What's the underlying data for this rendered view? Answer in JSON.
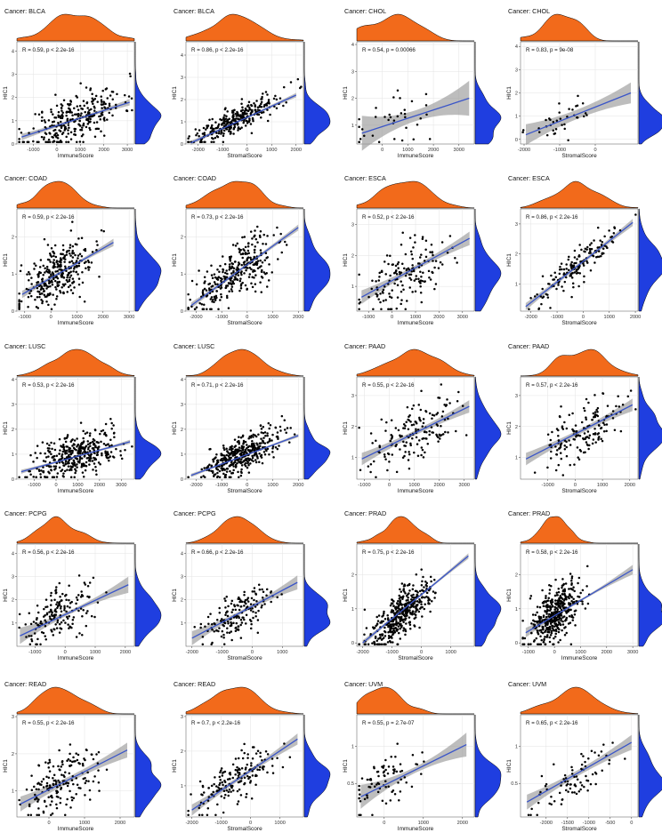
{
  "figure": {
    "title_prefix": "Cancer: ",
    "colors": {
      "point": "#000000",
      "line": "#3a55c8",
      "ribbon": "#9a9a9a",
      "top_density": "#f26a1b",
      "right_density": "#1f3ee0",
      "grid": "#e3e3e3",
      "panel_bg": "#ffffff",
      "density_outline": "#000000"
    }
  },
  "chart_data": [
    {
      "type": "scatter",
      "cancer": "BLCA",
      "title": "Cancer: BLCA",
      "xlabel": "ImmuneScore",
      "ylabel": "HIC1",
      "stat": "R = 0.59, p < 2.2e-16",
      "xlim": [
        -1700,
        3300
      ],
      "ylim": [
        0,
        4.4
      ],
      "xticks": [
        -1000,
        0,
        1000,
        2000,
        3000
      ],
      "yticks": [
        0,
        1,
        2,
        3,
        4
      ],
      "x_center": 800,
      "x_sd": 1000,
      "y_center": 1.1,
      "y_sd": 0.65,
      "r": 0.59,
      "n": 300,
      "seed": 11,
      "fit": {
        "x": [
          -1500,
          3100
        ],
        "y": [
          0.3,
          1.8
        ]
      },
      "ribbon": {
        "lo": 0.06,
        "hi": 0.14
      }
    },
    {
      "type": "scatter",
      "cancer": "BLCA",
      "title": "Cancer: BLCA",
      "xlabel": "StromalScore",
      "ylabel": "HIC1",
      "stat": "R = 0.86, p < 2.2e-16",
      "xlim": [
        -2500,
        2300
      ],
      "ylim": [
        0,
        4.6
      ],
      "xticks": [
        -2000,
        -1000,
        0,
        1000,
        2000
      ],
      "yticks": [
        0,
        1,
        2,
        3,
        4
      ],
      "x_center": -400,
      "x_sd": 900,
      "y_center": 1.1,
      "y_sd": 0.6,
      "r": 0.86,
      "n": 300,
      "seed": 12,
      "fit": {
        "x": [
          -2300,
          2000
        ],
        "y": [
          0.05,
          2.2
        ]
      },
      "ribbon": {
        "lo": 0.05,
        "hi": 0.1
      }
    },
    {
      "type": "scatter",
      "cancer": "CHOL",
      "title": "Cancer: CHOL",
      "xlabel": "ImmuneScore",
      "ylabel": "HIC1",
      "stat": "R = 0.54, p = 0.00066",
      "xlim": [
        -1000,
        3600
      ],
      "ylim": [
        0.3,
        4.1
      ],
      "xticks": [
        0,
        1000,
        2000,
        3000
      ],
      "yticks": [
        1,
        2,
        3,
        4
      ],
      "x_center": 500,
      "x_sd": 900,
      "y_center": 1.2,
      "y_sd": 0.6,
      "r": 0.54,
      "n": 36,
      "seed": 13,
      "fit": {
        "x": [
          -800,
          3400
        ],
        "y": [
          0.7,
          2.0
        ]
      },
      "ribbon": {
        "lo": 0.2,
        "hi": 0.65
      }
    },
    {
      "type": "scatter",
      "cancer": "CHOL",
      "title": "Cancer: CHOL",
      "xlabel": "StromalScore",
      "ylabel": "HIC1",
      "stat": "R = 0.83, p = 9e-08",
      "xlim": [
        -2100,
        1200
      ],
      "ylim": [
        -0.2,
        4.2
      ],
      "xticks": [
        -2000,
        -1000,
        0
      ],
      "yticks": [
        0,
        1,
        2,
        3,
        4
      ],
      "x_center": -700,
      "x_sd": 550,
      "y_center": 1.1,
      "y_sd": 0.6,
      "r": 0.83,
      "n": 36,
      "seed": 14,
      "fit": {
        "x": [
          -1950,
          1000
        ],
        "y": [
          0.2,
          2.0
        ]
      },
      "ribbon": {
        "lo": 0.2,
        "hi": 0.45
      }
    },
    {
      "type": "scatter",
      "cancer": "COAD",
      "title": "Cancer: COAD",
      "xlabel": "ImmuneScore",
      "ylabel": "HIC1",
      "stat": "R = 0.59, p < 2.2e-16",
      "xlim": [
        -1300,
        3200
      ],
      "ylim": [
        0,
        2.75
      ],
      "xticks": [
        -1000,
        0,
        1000,
        2000,
        3000
      ],
      "yticks": [
        0,
        1,
        2
      ],
      "x_center": 300,
      "x_sd": 700,
      "y_center": 1.0,
      "y_sd": 0.45,
      "r": 0.59,
      "n": 320,
      "seed": 21,
      "fit": {
        "x": [
          -1100,
          2400
        ],
        "y": [
          0.45,
          1.85
        ]
      },
      "ribbon": {
        "lo": 0.04,
        "hi": 0.1
      }
    },
    {
      "type": "scatter",
      "cancer": "COAD",
      "title": "Cancer: COAD",
      "xlabel": "StromalScore",
      "ylabel": "HIC1",
      "stat": "R = 0.73, p < 2.2e-16",
      "xlim": [
        -2400,
        2200
      ],
      "ylim": [
        0,
        2.75
      ],
      "xticks": [
        -2000,
        -1000,
        0,
        1000,
        2000
      ],
      "yticks": [
        0,
        1,
        2
      ],
      "x_center": -500,
      "x_sd": 800,
      "y_center": 1.0,
      "y_sd": 0.5,
      "r": 0.73,
      "n": 320,
      "seed": 22,
      "fit": {
        "x": [
          -2200,
          2000
        ],
        "y": [
          0.15,
          2.25
        ]
      },
      "ribbon": {
        "lo": 0.04,
        "hi": 0.08
      }
    },
    {
      "type": "scatter",
      "cancer": "ESCA",
      "title": "Cancer: ESCA",
      "xlabel": "ImmuneScore",
      "ylabel": "HIC1",
      "stat": "R = 0.52, p < 2.2e-16",
      "xlim": [
        -1500,
        3500
      ],
      "ylim": [
        0.2,
        3.5
      ],
      "xticks": [
        -1000,
        0,
        1000,
        2000,
        3000
      ],
      "yticks": [
        1,
        2,
        3
      ],
      "x_center": 500,
      "x_sd": 900,
      "y_center": 1.3,
      "y_sd": 0.55,
      "r": 0.52,
      "n": 160,
      "seed": 23,
      "fit": {
        "x": [
          -1300,
          3300
        ],
        "y": [
          0.65,
          2.55
        ]
      },
      "ribbon": {
        "lo": 0.08,
        "hi": 0.22
      }
    },
    {
      "type": "scatter",
      "cancer": "ESCA",
      "title": "Cancer: ESCA",
      "xlabel": "StromalScore",
      "ylabel": "HIC1",
      "stat": "R = 0.86, p < 2.2e-16",
      "xlim": [
        -2400,
        2100
      ],
      "ylim": [
        0.1,
        3.5
      ],
      "xticks": [
        -2000,
        -1000,
        0,
        1000,
        2000
      ],
      "yticks": [
        1,
        2,
        3
      ],
      "x_center": -400,
      "x_sd": 800,
      "y_center": 1.5,
      "y_sd": 0.6,
      "r": 0.86,
      "n": 160,
      "seed": 24,
      "fit": {
        "x": [
          -2200,
          1900
        ],
        "y": [
          0.25,
          3.05
        ]
      },
      "ribbon": {
        "lo": 0.06,
        "hi": 0.12
      }
    },
    {
      "type": "scatter",
      "cancer": "LUSC",
      "title": "Cancer: LUSC",
      "xlabel": "ImmuneScore",
      "ylabel": "HIC1",
      "stat": "R = 0.53, p < 2.2e-16",
      "xlim": [
        -1800,
        3600
      ],
      "ylim": [
        0,
        4.1
      ],
      "xticks": [
        -1000,
        0,
        1000,
        2000,
        3000
      ],
      "yticks": [
        0,
        1,
        2,
        3,
        4
      ],
      "x_center": 900,
      "x_sd": 1000,
      "y_center": 0.95,
      "y_sd": 0.5,
      "r": 0.53,
      "n": 380,
      "seed": 31,
      "fit": {
        "x": [
          -1600,
          3400
        ],
        "y": [
          0.3,
          1.5
        ]
      },
      "ribbon": {
        "lo": 0.03,
        "hi": 0.08
      }
    },
    {
      "type": "scatter",
      "cancer": "LUSC",
      "title": "Cancer: LUSC",
      "xlabel": "StromalScore",
      "ylabel": "HIC1",
      "stat": "R = 0.71, p < 2.2e-16",
      "xlim": [
        -2400,
        2200
      ],
      "ylim": [
        0,
        4.1
      ],
      "xticks": [
        -2000,
        -1000,
        0,
        1000,
        2000
      ],
      "yticks": [
        0,
        1,
        2,
        3,
        4
      ],
      "x_center": -300,
      "x_sd": 800,
      "y_center": 0.95,
      "y_sd": 0.5,
      "r": 0.71,
      "n": 380,
      "seed": 32,
      "fit": {
        "x": [
          -2200,
          2000
        ],
        "y": [
          0.15,
          1.75
        ]
      },
      "ribbon": {
        "lo": 0.03,
        "hi": 0.07
      }
    },
    {
      "type": "scatter",
      "cancer": "PAAD",
      "title": "Cancer: PAAD",
      "xlabel": "ImmuneScore",
      "ylabel": "HIC1",
      "stat": "R = 0.55, p < 2.2e-16",
      "xlim": [
        -1300,
        3400
      ],
      "ylim": [
        0.3,
        3.6
      ],
      "xticks": [
        -1000,
        0,
        1000,
        2000,
        3000
      ],
      "yticks": [
        1,
        2,
        3
      ],
      "x_center": 1000,
      "x_sd": 900,
      "y_center": 1.8,
      "y_sd": 0.55,
      "r": 0.55,
      "n": 160,
      "seed": 33,
      "fit": {
        "x": [
          -1100,
          3200
        ],
        "y": [
          0.95,
          2.65
        ]
      },
      "ribbon": {
        "lo": 0.08,
        "hi": 0.2
      }
    },
    {
      "type": "scatter",
      "cancer": "PAAD",
      "title": "Cancer: PAAD",
      "xlabel": "StromalScore",
      "ylabel": "HIC1",
      "stat": "R = 0.57, p < 2.2e-16",
      "xlim": [
        -2000,
        2300
      ],
      "ylim": [
        0.3,
        3.6
      ],
      "xticks": [
        -1000,
        0,
        1000,
        2000
      ],
      "yticks": [
        1,
        2,
        3
      ],
      "x_center": 300,
      "x_sd": 800,
      "y_center": 1.8,
      "y_sd": 0.55,
      "r": 0.57,
      "n": 160,
      "seed": 34,
      "fit": {
        "x": [
          -1800,
          2100
        ],
        "y": [
          0.95,
          2.7
        ]
      },
      "ribbon": {
        "lo": 0.08,
        "hi": 0.2
      }
    },
    {
      "type": "scatter",
      "cancer": "PCPG",
      "title": "Cancer: PCPG",
      "xlabel": "ImmuneScore",
      "ylabel": "HIC1",
      "stat": "R = 0.56, p < 2.2e-16",
      "xlim": [
        -1600,
        2300
      ],
      "ylim": [
        0,
        4.4
      ],
      "xticks": [
        -1000,
        0,
        1000,
        2000
      ],
      "yticks": [
        1,
        2,
        3,
        4
      ],
      "x_center": -200,
      "x_sd": 600,
      "y_center": 1.4,
      "y_sd": 0.65,
      "r": 0.56,
      "n": 170,
      "seed": 41,
      "fit": {
        "x": [
          -1500,
          2100
        ],
        "y": [
          0.45,
          2.65
        ]
      },
      "ribbon": {
        "lo": 0.08,
        "hi": 0.35
      }
    },
    {
      "type": "scatter",
      "cancer": "PCPG",
      "title": "Cancer: PCPG",
      "xlabel": "StromalScore",
      "ylabel": "HIC1",
      "stat": "R = 0.66, p < 2.2e-16",
      "xlim": [
        -2200,
        1700
      ],
      "ylim": [
        0,
        4.4
      ],
      "xticks": [
        -2000,
        -1000,
        0,
        1000
      ],
      "yticks": [
        1,
        2,
        3,
        4
      ],
      "x_center": -500,
      "x_sd": 600,
      "y_center": 1.4,
      "y_sd": 0.65,
      "r": 0.66,
      "n": 170,
      "seed": 42,
      "fit": {
        "x": [
          -2000,
          1500
        ],
        "y": [
          0.35,
          2.75
        ]
      },
      "ribbon": {
        "lo": 0.08,
        "hi": 0.3
      }
    },
    {
      "type": "scatter",
      "cancer": "PRAD",
      "title": "Cancer: PRAD",
      "xlabel": "StromalScore",
      "ylabel": "HIC1",
      "stat": "R = 0.75, p < 2.2e-16",
      "xlim": [
        -2200,
        1800
      ],
      "ylim": [
        -0.1,
        2.9
      ],
      "xticks": [
        -2000,
        -1000,
        0,
        1000
      ],
      "yticks": [
        0,
        1,
        2
      ],
      "x_center": -700,
      "x_sd": 550,
      "y_center": 0.85,
      "y_sd": 0.5,
      "r": 0.75,
      "n": 420,
      "seed": 43,
      "fit": {
        "x": [
          -2000,
          1600
        ],
        "y": [
          0.0,
          2.55
        ]
      },
      "ribbon": {
        "lo": 0.03,
        "hi": 0.08
      }
    },
    {
      "type": "scatter",
      "cancer": "PRAD",
      "title": "Cancer: PRAD",
      "xlabel": "ImmuneScore",
      "ylabel": "HIC1",
      "stat": "R = 0.58, p < 2.2e-16",
      "xlim": [
        -1300,
        3200
      ],
      "ylim": [
        -0.1,
        2.9
      ],
      "xticks": [
        -1000,
        0,
        1000,
        2000,
        3000
      ],
      "yticks": [
        0,
        1,
        2
      ],
      "x_center": 0,
      "x_sd": 500,
      "y_center": 0.85,
      "y_sd": 0.5,
      "r": 0.58,
      "n": 420,
      "seed": 44,
      "fit": {
        "x": [
          -1100,
          3000
        ],
        "y": [
          0.3,
          2.15
        ]
      },
      "ribbon": {
        "lo": 0.03,
        "hi": 0.14
      }
    },
    {
      "type": "scatter",
      "cancer": "READ",
      "title": "Cancer: READ",
      "xlabel": "ImmuneScore",
      "ylabel": "HIC1",
      "stat": "R = 0.55, p < 2.2e-16",
      "xlim": [
        -900,
        2400
      ],
      "ylim": [
        0.3,
        3.05
      ],
      "xticks": [
        0,
        1000,
        2000
      ],
      "yticks": [
        1,
        2,
        3
      ],
      "x_center": 300,
      "x_sd": 550,
      "y_center": 1.2,
      "y_sd": 0.5,
      "r": 0.55,
      "n": 170,
      "seed": 51,
      "fit": {
        "x": [
          -800,
          2200
        ],
        "y": [
          0.65,
          2.1
        ]
      },
      "ribbon": {
        "lo": 0.08,
        "hi": 0.2
      }
    },
    {
      "type": "scatter",
      "cancer": "READ",
      "title": "Cancer: READ",
      "xlabel": "StromalScore",
      "ylabel": "HIC1",
      "stat": "R = 0.7, p < 2.2e-16",
      "xlim": [
        -2200,
        1800
      ],
      "ylim": [
        0.1,
        3.05
      ],
      "xticks": [
        -2000,
        -1000,
        0,
        1000
      ],
      "yticks": [
        1,
        2,
        3
      ],
      "x_center": -500,
      "x_sd": 650,
      "y_center": 1.2,
      "y_sd": 0.5,
      "r": 0.7,
      "n": 170,
      "seed": 52,
      "fit": {
        "x": [
          -2000,
          1600
        ],
        "y": [
          0.3,
          2.35
        ]
      },
      "ribbon": {
        "lo": 0.06,
        "hi": 0.16
      }
    },
    {
      "type": "scatter",
      "cancer": "UVM",
      "title": "Cancer: UVM",
      "xlabel": "ImmuneScore",
      "ylabel": "HIC1",
      "stat": "R = 0.55, p = 2.7e-07",
      "xlim": [
        -700,
        2300
      ],
      "ylim": [
        0.05,
        1.42
      ],
      "xticks": [
        0,
        1000,
        2000
      ],
      "yticks": [
        0.5,
        1.0
      ],
      "x_center": 0,
      "x_sd": 500,
      "y_center": 0.55,
      "y_sd": 0.22,
      "r": 0.55,
      "n": 80,
      "seed": 53,
      "fit": {
        "x": [
          -600,
          2100
        ],
        "y": [
          0.32,
          1.02
        ]
      },
      "ribbon": {
        "lo": 0.04,
        "hi": 0.16
      }
    },
    {
      "type": "scatter",
      "cancer": "UVM",
      "title": "Cancer: UVM",
      "xlabel": "StromalScore",
      "ylabel": "HIC1",
      "stat": "R = 0.65, p < 2.2e-16",
      "xlim": [
        -2600,
        150
      ],
      "ylim": [
        0.05,
        1.42
      ],
      "xticks": [
        -2000,
        -1500,
        -1000,
        -500,
        0
      ],
      "yticks": [
        0.5,
        1.0
      ],
      "x_center": -1400,
      "x_sd": 450,
      "y_center": 0.55,
      "y_sd": 0.22,
      "r": 0.65,
      "n": 80,
      "seed": 54,
      "fit": {
        "x": [
          -2450,
          0
        ],
        "y": [
          0.25,
          1.05
        ]
      },
      "ribbon": {
        "lo": 0.04,
        "hi": 0.1
      }
    }
  ]
}
